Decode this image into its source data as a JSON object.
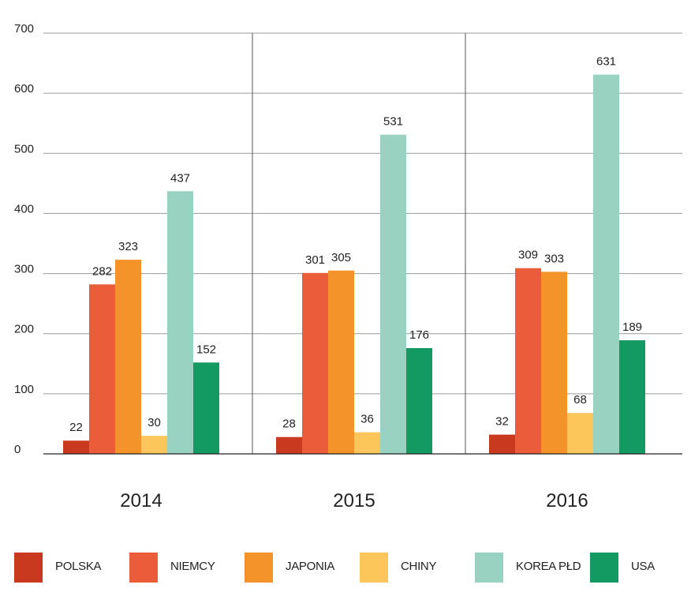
{
  "chart_data": {
    "type": "bar",
    "categories": [
      "2014",
      "2015",
      "2016"
    ],
    "series": [
      {
        "name": "POLSKA",
        "color": "#c9391f",
        "values": [
          22,
          28,
          32
        ]
      },
      {
        "name": "NIEMCY",
        "color": "#ea5c3a",
        "values": [
          282,
          301,
          309
        ]
      },
      {
        "name": "JAPONIA",
        "color": "#f3932a",
        "values": [
          323,
          305,
          303
        ]
      },
      {
        "name": "CHINY",
        "color": "#fdc65a",
        "values": [
          30,
          36,
          68
        ]
      },
      {
        "name": "KOREA PŁD",
        "color": "#99d2c0",
        "values": [
          437,
          531,
          631
        ]
      },
      {
        "name": "USA",
        "color": "#129a62",
        "values": [
          152,
          176,
          189
        ]
      }
    ],
    "yticks": [
      "0",
      "100",
      "200",
      "300",
      "400",
      "500",
      "600",
      "700"
    ],
    "ylim": [
      0,
      700
    ],
    "grid": true,
    "legend_position": "bottom",
    "title": "",
    "xlabel": "",
    "ylabel": ""
  }
}
